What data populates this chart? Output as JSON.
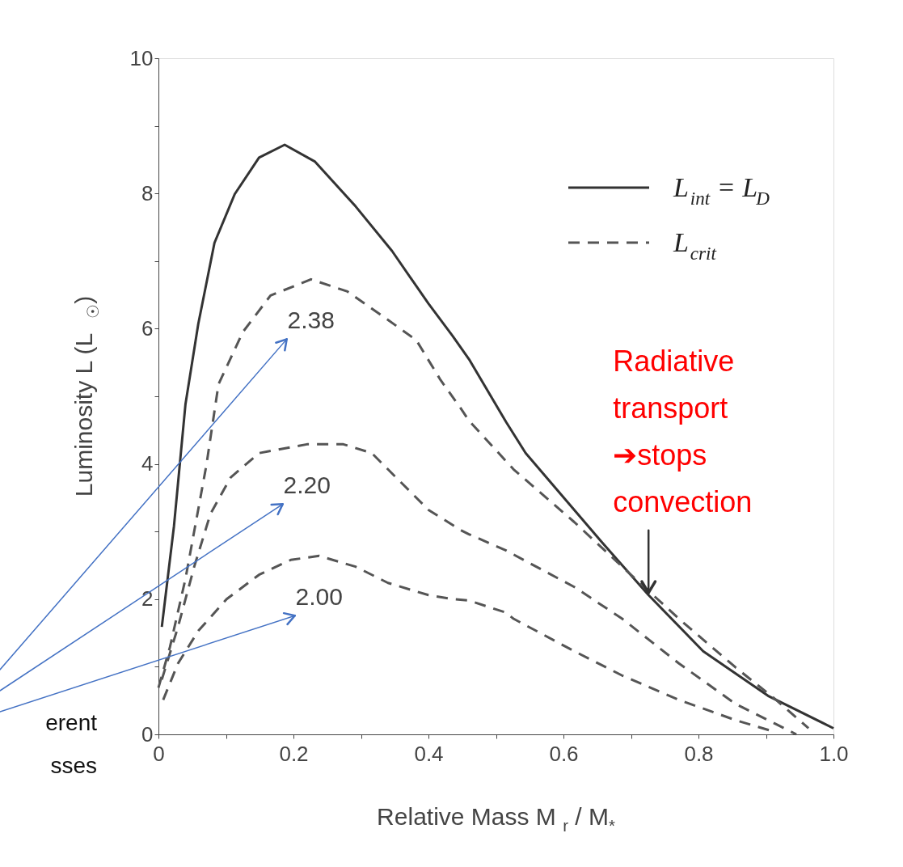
{
  "chart_data": {
    "type": "line",
    "xlabel": "Relative Mass  M$_{r}$ / M$_{*}$",
    "ylabel": "Luminosity  L  (L$_{☉}$)",
    "xlim": [
      0,
      1.0
    ],
    "ylim": [
      0,
      10
    ],
    "xticks": [
      0,
      {
        "value": 0.1,
        "label": null
      },
      0.2,
      {
        "value": 0.3,
        "label": null
      },
      0.4,
      {
        "value": 0.5,
        "label": null
      },
      0.6,
      {
        "value": 0.7,
        "label": null
      },
      0.8,
      {
        "value": 0.9,
        "label": null
      },
      {
        "value": 1.0,
        "label": "1.0"
      }
    ],
    "yticks": [
      0,
      {
        "value": 1,
        "label": null
      },
      2,
      {
        "value": 3,
        "label": null
      },
      4,
      {
        "value": 5,
        "label": null
      },
      6,
      {
        "value": 7,
        "label": null
      },
      8,
      {
        "value": 9,
        "label": null
      },
      10
    ],
    "grid": false,
    "legend": "top right",
    "marker": "none",
    "series": [
      {
        "name": "L$_{int}$ = L$_{D}$",
        "color": "#333333",
        "line_style": "solid",
        "x": [
          0.005,
          0.023,
          0.04,
          0.059,
          0.083,
          0.113,
          0.149,
          0.187,
          0.232,
          0.292,
          0.346,
          0.4,
          0.436,
          0.46,
          0.515,
          0.544,
          0.657,
          0.726,
          0.807,
          0.903,
          1.0
        ],
        "values": [
          1.59,
          3.08,
          4.88,
          6.07,
          7.27,
          7.99,
          8.53,
          8.72,
          8.47,
          7.81,
          7.15,
          6.37,
          5.89,
          5.55,
          4.62,
          4.16,
          2.84,
          2.06,
          1.23,
          0.57,
          0.09
        ]
      },
      {
        "name": "L$_{crit}$",
        "color": "#555555",
        "line_style": "dashed",
        "x": [
          0.0,
          0.017,
          0.04,
          0.071,
          0.089,
          0.125,
          0.166,
          0.226,
          0.28,
          0.34,
          0.382,
          0.418,
          0.448,
          0.46,
          0.526,
          0.616,
          0.687,
          0.771,
          0.855,
          0.915,
          0.963
        ],
        "values": [
          0.69,
          1.29,
          2.3,
          3.98,
          5.18,
          5.95,
          6.49,
          6.73,
          6.55,
          6.13,
          5.83,
          5.24,
          4.82,
          4.64,
          3.92,
          3.14,
          2.48,
          1.71,
          0.99,
          0.51,
          0.09
        ]
      },
      {
        "color": "#555555",
        "line_style": "dashed",
        "x": [
          0.005,
          0.029,
          0.053,
          0.077,
          0.107,
          0.149,
          0.22,
          0.274,
          0.316,
          0.352,
          0.4,
          0.448,
          0.46,
          0.515,
          0.526,
          0.616,
          0.687,
          0.771,
          0.855,
          0.915,
          0.945
        ],
        "values": [
          0.81,
          1.59,
          2.48,
          3.26,
          3.8,
          4.16,
          4.29,
          4.29,
          4.16,
          3.8,
          3.32,
          3.02,
          2.96,
          2.72,
          2.66,
          2.18,
          1.71,
          1.05,
          0.45,
          0.15,
          0.0
        ]
      },
      {
        "color": "#555555",
        "line_style": "dashed",
        "x": [
          0.007,
          0.029,
          0.059,
          0.101,
          0.149,
          0.196,
          0.238,
          0.292,
          0.34,
          0.4,
          0.436,
          0.46,
          0.515,
          0.526,
          0.616,
          0.687,
          0.771,
          0.855,
          0.915
        ],
        "values": [
          0.51,
          1.05,
          1.53,
          2.0,
          2.36,
          2.58,
          2.64,
          2.48,
          2.24,
          2.06,
          2.0,
          1.98,
          1.8,
          1.71,
          1.23,
          0.87,
          0.51,
          0.21,
          0.03
        ]
      }
    ],
    "annotations": [
      "2.38",
      "2.20",
      "2.00",
      {
        "text": "Radiative\ntransport\n➔stops\nconvection",
        "x": 0.726,
        "y": 2.06
      },
      "erent",
      "sses"
    ]
  }
}
